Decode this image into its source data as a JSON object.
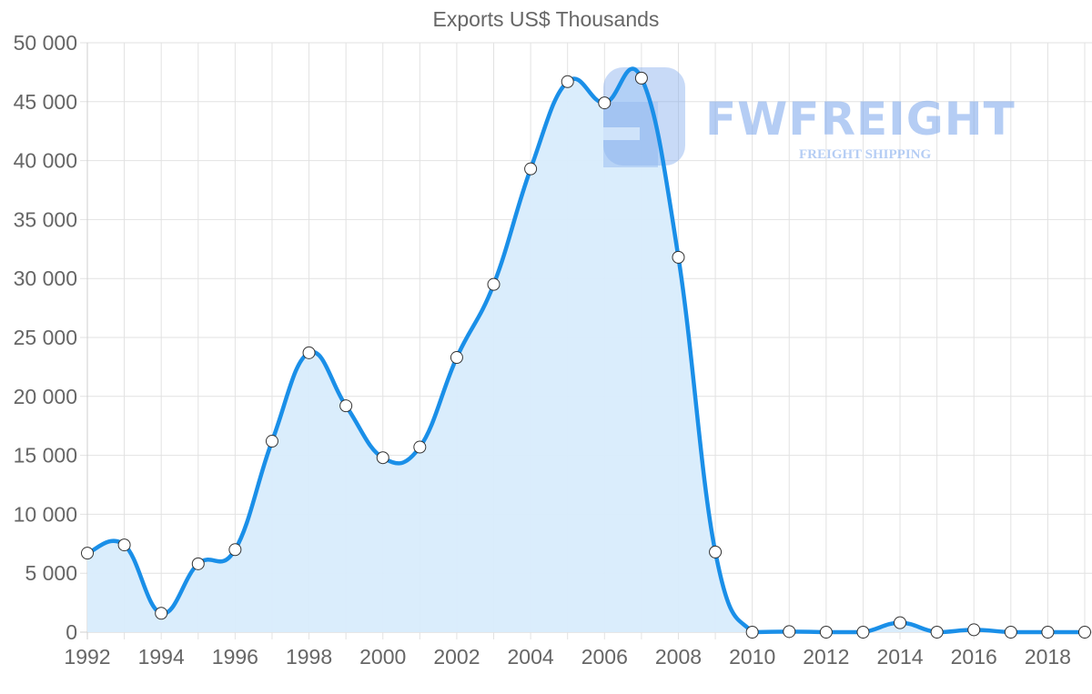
{
  "chart_data": {
    "type": "area",
    "title": "Exports US$ Thousands",
    "xlabel": "",
    "ylabel": "",
    "ylim": [
      0,
      50000
    ],
    "y_ticks": [
      "0",
      "5 000",
      "10 000",
      "15 000",
      "20 000",
      "25 000",
      "30 000",
      "35 000",
      "40 000",
      "45 000",
      "50 000"
    ],
    "x_tick_labels": [
      "1992",
      "1994",
      "1996",
      "1998",
      "2000",
      "2002",
      "2004",
      "2006",
      "2008",
      "2010",
      "2012",
      "2014",
      "2016",
      "2018"
    ],
    "grid": true,
    "legend": null,
    "x": [
      1992,
      1993,
      1994,
      1995,
      1996,
      1997,
      1998,
      1999,
      2000,
      2001,
      2002,
      2003,
      2004,
      2005,
      2006,
      2007,
      2008,
      2009,
      2010,
      2011,
      2012,
      2013,
      2014,
      2015,
      2016,
      2017,
      2018,
      2019
    ],
    "series": [
      {
        "name": "Exports US$ Thousands",
        "values": [
          6700,
          7400,
          1600,
          5800,
          7000,
          16200,
          23700,
          19200,
          14800,
          15700,
          23300,
          29500,
          39300,
          46700,
          44900,
          47000,
          31800,
          6800,
          0,
          50,
          0,
          0,
          800,
          0,
          200,
          0,
          0,
          0
        ]
      }
    ],
    "colors": {
      "line": "#1a8fe8",
      "fill": "#d8ecfc",
      "point_fill": "#ffffff",
      "point_stroke": "#333333"
    }
  },
  "watermark": {
    "brand": "FWFREIGHT",
    "tagline": "FREIGHT SHIPPING"
  }
}
